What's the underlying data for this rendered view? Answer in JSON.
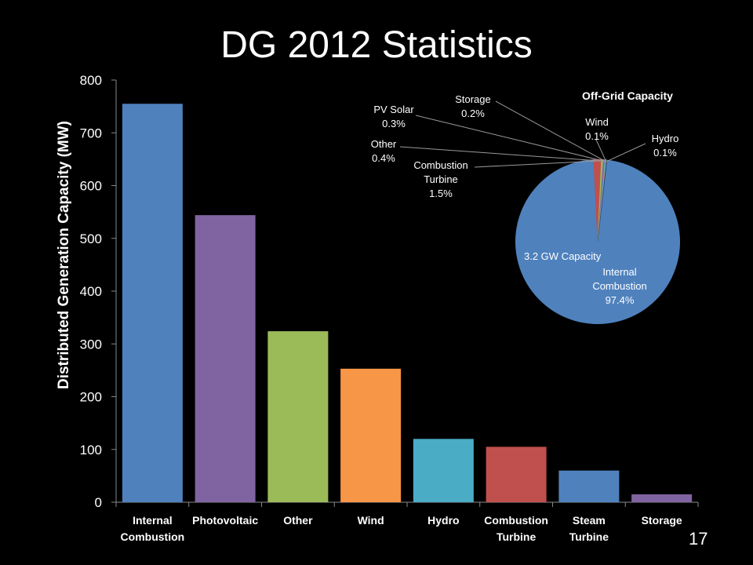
{
  "slide": {
    "title": "DG 2012 Statistics",
    "page_number": "17"
  },
  "chart_data": [
    {
      "type": "bar",
      "title": "",
      "xlabel": "",
      "ylabel": "Distributed Generation Capacity (MW)",
      "ylim": [
        0,
        800
      ],
      "yticks": [
        0,
        100,
        200,
        300,
        400,
        500,
        600,
        700,
        800
      ],
      "categories": [
        "Internal Combustion",
        "Photovoltaic",
        "Other",
        "Wind",
        "Hydro",
        "Combustion Turbine",
        "Steam Turbine",
        "Storage"
      ],
      "category_lines": [
        [
          "Internal",
          "Combustion"
        ],
        [
          "Photovoltaic"
        ],
        [
          "Other"
        ],
        [
          "Wind"
        ],
        [
          "Hydro"
        ],
        [
          "Combustion",
          "Turbine"
        ],
        [
          "Steam",
          "Turbine"
        ],
        [
          "Storage"
        ]
      ],
      "values": [
        755,
        544,
        324,
        253,
        120,
        105,
        60,
        15
      ],
      "colors": [
        "#4f81bd",
        "#8064a2",
        "#9bbb59",
        "#f79646",
        "#4bacc6",
        "#c0504d",
        "#4f81bd",
        "#8064a2"
      ],
      "grid": false,
      "legend": "none"
    },
    {
      "type": "pie",
      "title": "Off-Grid Capacity",
      "center_note": "3.2 GW Capacity",
      "slices": [
        {
          "name": "Internal Combustion",
          "lines": [
            "Internal",
            "Combustion"
          ],
          "value": 97.4,
          "label": "97.4%",
          "color": "#4f81bd"
        },
        {
          "name": "Combustion Turbine",
          "lines": [
            "Combustion",
            "Turbine"
          ],
          "value": 1.5,
          "label": "1.5%",
          "color": "#c0504d"
        },
        {
          "name": "Other",
          "lines": [
            "Other"
          ],
          "value": 0.4,
          "label": "0.4%",
          "color": "#9bbb59"
        },
        {
          "name": "PV Solar",
          "lines": [
            "PV Solar"
          ],
          "value": 0.3,
          "label": "0.3%",
          "color": "#8064a2"
        },
        {
          "name": "Storage",
          "lines": [
            "Storage"
          ],
          "value": 0.2,
          "label": "0.2%",
          "color": "#4bacc6"
        },
        {
          "name": "Wind",
          "lines": [
            "Wind"
          ],
          "value": 0.1,
          "label": "0.1%",
          "color": "#f79646"
        },
        {
          "name": "Hydro",
          "lines": [
            "Hydro"
          ],
          "value": 0.1,
          "label": "0.1%",
          "color": "#2c4d75"
        }
      ]
    }
  ]
}
